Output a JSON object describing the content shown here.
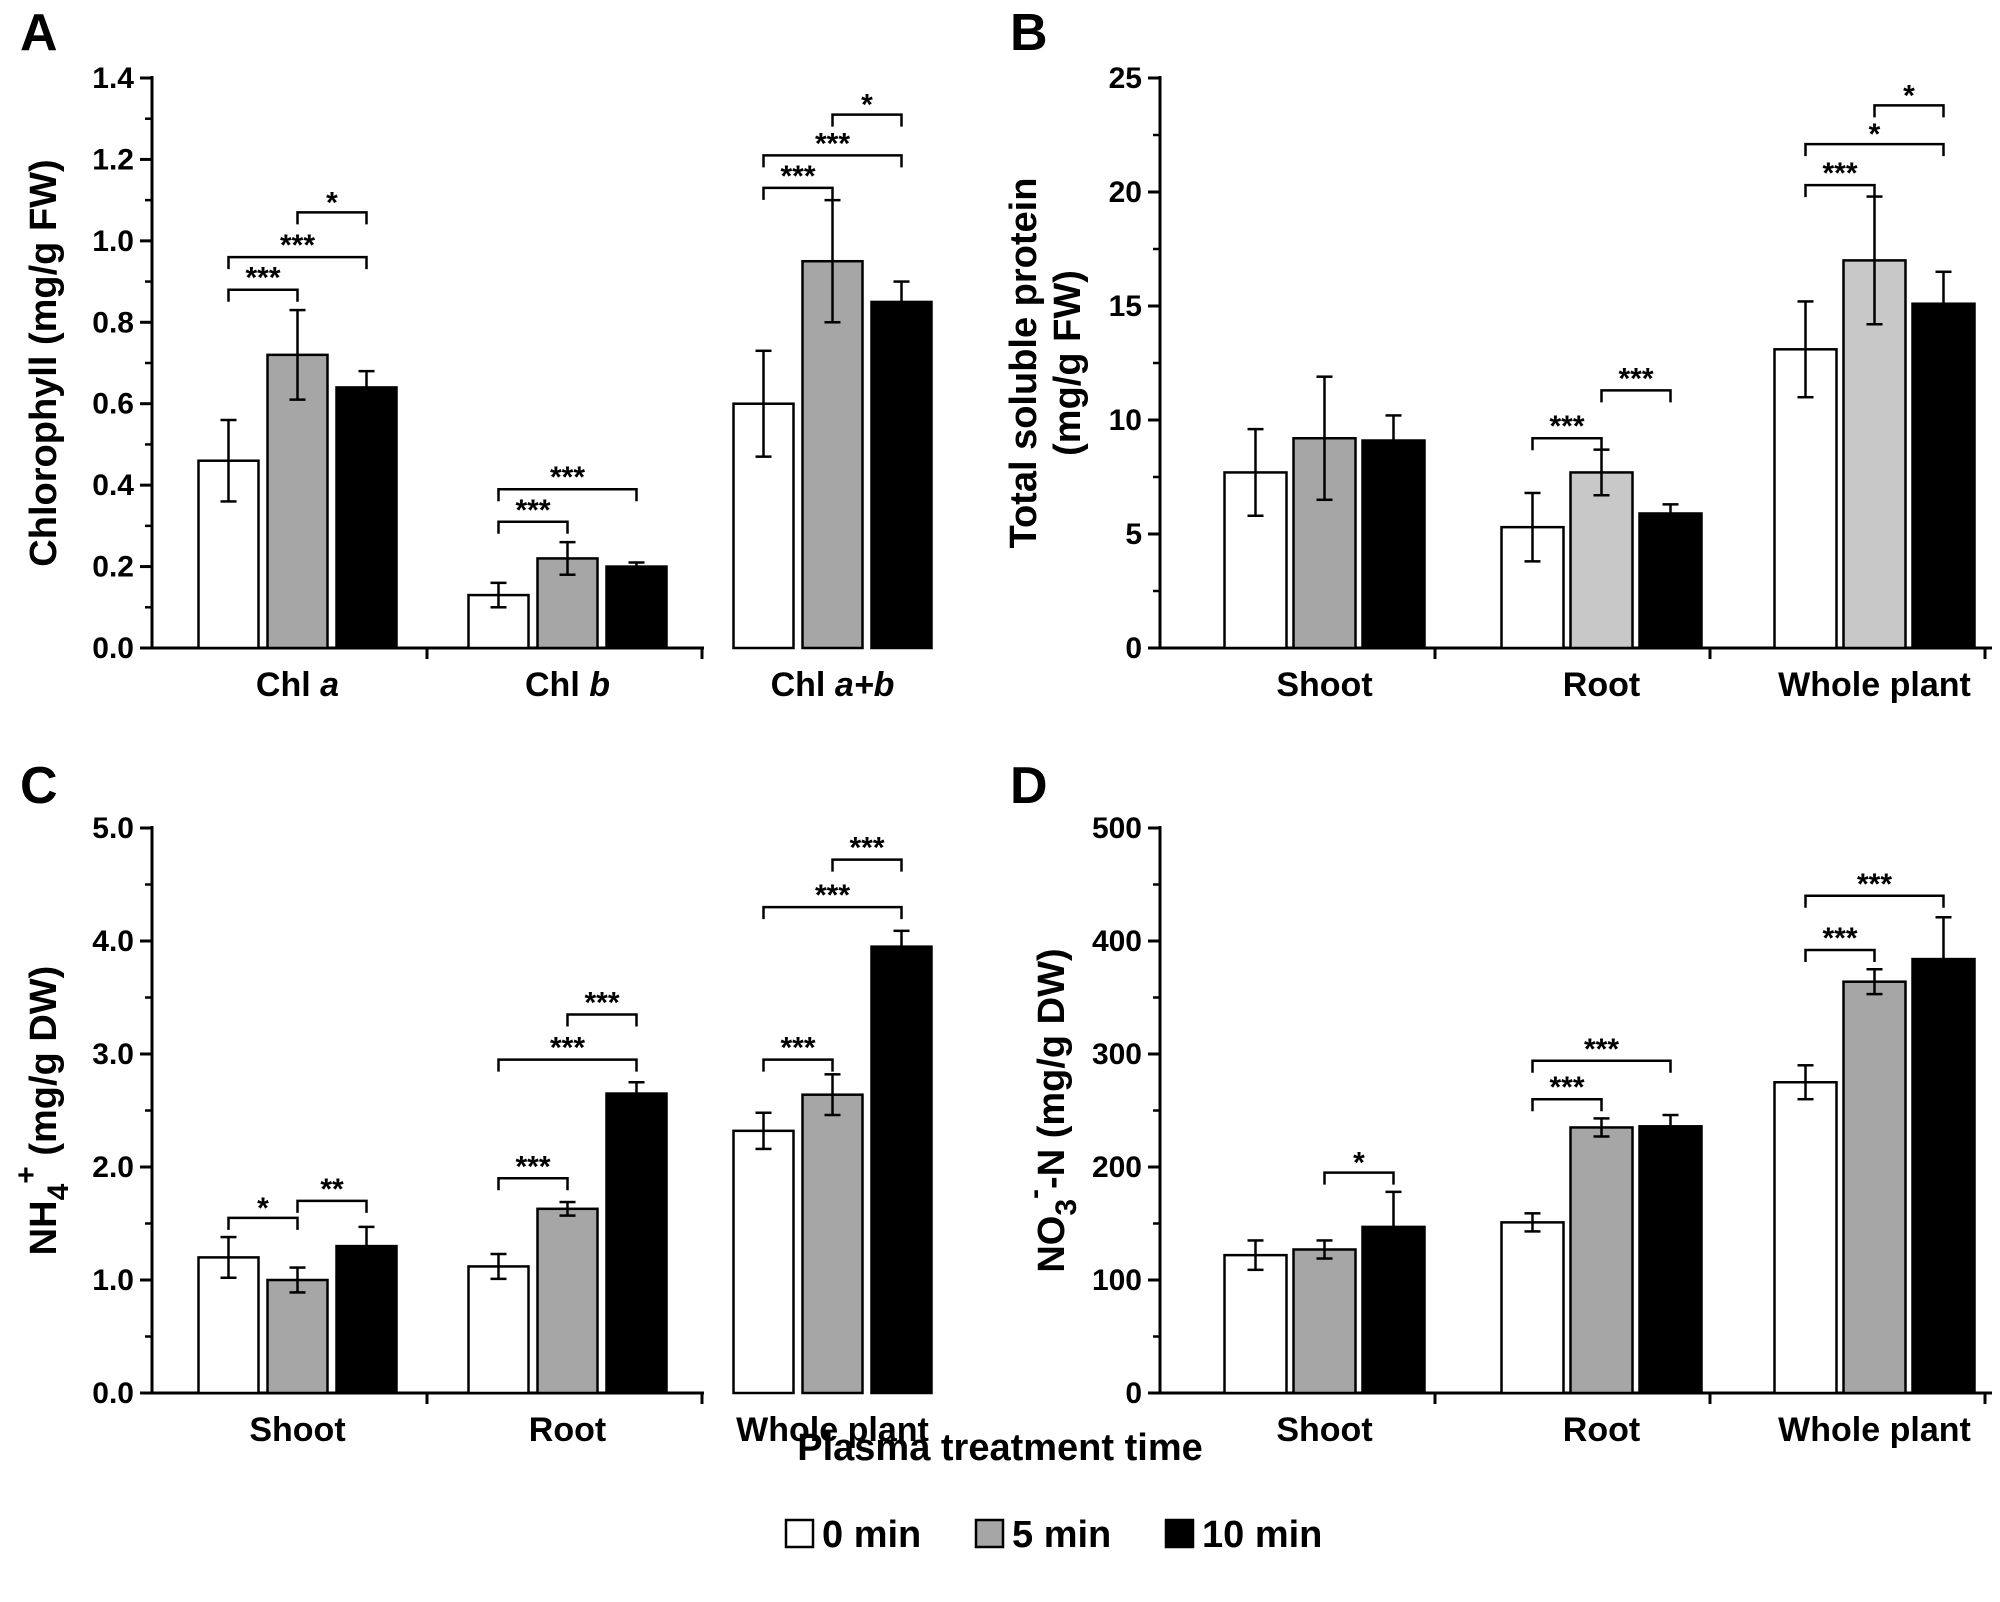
{
  "figure": {
    "legend_title": "Plasma treatment time",
    "legend": [
      {
        "label": "0 min",
        "color": "#ffffff"
      },
      {
        "label": "5 min",
        "color": "#a6a6a6"
      },
      {
        "label": "10 min",
        "color": "#000000"
      }
    ]
  },
  "chart_data": [
    {
      "panel": "A",
      "type": "bar",
      "ylabel": "Chlorophyll (mg/g FW)",
      "ylim": [
        0,
        1.4
      ],
      "yticks": [
        "0.0",
        "0.2",
        "0.4",
        "0.6",
        "0.8",
        "1.0",
        "1.2",
        "1.4"
      ],
      "categories": [
        [
          "Chl ",
          "a"
        ],
        [
          "Chl ",
          "b"
        ],
        [
          "Chl ",
          "a+b"
        ]
      ],
      "series": [
        {
          "name": "0 min",
          "color": "#ffffff",
          "values": [
            0.46,
            0.13,
            0.6
          ],
          "errors": [
            0.1,
            0.03,
            0.13
          ]
        },
        {
          "name": "5 min",
          "color": "#a6a6a6",
          "values": [
            0.72,
            0.22,
            0.95
          ],
          "errors": [
            0.11,
            0.04,
            0.15
          ]
        },
        {
          "name": "10 min",
          "color": "#000000",
          "values": [
            0.64,
            0.2,
            0.85
          ],
          "errors": [
            0.04,
            0.01,
            0.05
          ]
        }
      ],
      "significance": [
        {
          "cat": 0,
          "from": 0,
          "to": 1,
          "label": "***",
          "y": 0.88
        },
        {
          "cat": 0,
          "from": 0,
          "to": 2,
          "label": "***",
          "y": 0.96
        },
        {
          "cat": 0,
          "from": 1,
          "to": 2,
          "label": "*",
          "y": 1.07
        },
        {
          "cat": 1,
          "from": 0,
          "to": 1,
          "label": "***",
          "y": 0.31
        },
        {
          "cat": 1,
          "from": 0,
          "to": 2,
          "label": "***",
          "y": 0.39
        },
        {
          "cat": 2,
          "from": 0,
          "to": 1,
          "label": "***",
          "y": 1.13
        },
        {
          "cat": 2,
          "from": 0,
          "to": 2,
          "label": "***",
          "y": 1.21
        },
        {
          "cat": 2,
          "from": 1,
          "to": 2,
          "label": "*",
          "y": 1.31
        }
      ]
    },
    {
      "panel": "B",
      "type": "bar",
      "ylabel": [
        "Total soluble protein",
        "(mg/g FW)"
      ],
      "ylim": [
        0,
        25
      ],
      "yticks": [
        "0",
        "5",
        "10",
        "15",
        "20",
        "25"
      ],
      "categories": [
        "Shoot",
        "Root",
        "Whole plant"
      ],
      "series": [
        {
          "name": "0 min",
          "color": "#ffffff",
          "values": [
            7.7,
            5.3,
            13.1
          ],
          "errors": [
            1.9,
            1.5,
            2.1
          ]
        },
        {
          "name": "5 min",
          "color": "#a6a6a6",
          "values": [
            9.2,
            7.7,
            17.0
          ],
          "errors": [
            2.7,
            1.0,
            2.8
          ]
        },
        {
          "name": "10 min",
          "color": "#000000",
          "values": [
            9.1,
            5.9,
            15.1
          ],
          "errors": [
            1.1,
            0.4,
            1.4
          ]
        }
      ],
      "bar_colors": [
        [
          "#ffffff",
          "#a6a6a6",
          "#000000"
        ],
        [
          "#ffffff",
          "#c8c8c8",
          "#000000"
        ],
        [
          "#ffffff",
          "#c8c8c8",
          "#000000"
        ]
      ],
      "significance": [
        {
          "cat": 1,
          "from": 0,
          "to": 1,
          "label": "***",
          "y": 9.2
        },
        {
          "cat": 1,
          "from": 1,
          "to": 2,
          "label": "***",
          "y": 11.3
        },
        {
          "cat": 2,
          "from": 0,
          "to": 1,
          "label": "***",
          "y": 20.3
        },
        {
          "cat": 2,
          "from": 0,
          "to": 2,
          "label": "*",
          "y": 22.1
        },
        {
          "cat": 2,
          "from": 1,
          "to": 2,
          "label": "*",
          "y": 23.8
        }
      ]
    },
    {
      "panel": "C",
      "type": "bar",
      "ylabel": [
        "NH",
        "4",
        "+",
        " (mg/g DW)"
      ],
      "ylim": [
        0,
        5
      ],
      "yticks": [
        "0.0",
        "1.0",
        "2.0",
        "3.0",
        "4.0",
        "5.0"
      ],
      "categories": [
        "Shoot",
        "Root",
        "Whole plant"
      ],
      "series": [
        {
          "name": "0 min",
          "color": "#ffffff",
          "values": [
            1.2,
            1.12,
            2.32
          ],
          "errors": [
            0.18,
            0.11,
            0.16
          ]
        },
        {
          "name": "5 min",
          "color": "#a6a6a6",
          "values": [
            1.0,
            1.63,
            2.64
          ],
          "errors": [
            0.11,
            0.06,
            0.18
          ]
        },
        {
          "name": "10 min",
          "color": "#000000",
          "values": [
            1.3,
            2.65,
            3.95
          ],
          "errors": [
            0.17,
            0.1,
            0.14
          ]
        }
      ],
      "significance": [
        {
          "cat": 0,
          "from": 0,
          "to": 1,
          "label": "*",
          "y": 1.55
        },
        {
          "cat": 0,
          "from": 1,
          "to": 2,
          "label": "**",
          "y": 1.7
        },
        {
          "cat": 1,
          "from": 0,
          "to": 1,
          "label": "***",
          "y": 1.9
        },
        {
          "cat": 1,
          "from": 0,
          "to": 2,
          "label": "***",
          "y": 2.95
        },
        {
          "cat": 1,
          "from": 1,
          "to": 2,
          "label": "***",
          "y": 3.35
        },
        {
          "cat": 2,
          "from": 0,
          "to": 1,
          "label": "***",
          "y": 2.95
        },
        {
          "cat": 2,
          "from": 0,
          "to": 2,
          "label": "***",
          "y": 4.3
        },
        {
          "cat": 2,
          "from": 1,
          "to": 2,
          "label": "***",
          "y": 4.72
        }
      ]
    },
    {
      "panel": "D",
      "type": "bar",
      "ylabel": [
        "NO",
        "3",
        "-",
        "-N (mg/g DW)"
      ],
      "ylim": [
        0,
        500
      ],
      "yticks": [
        "0",
        "100",
        "200",
        "300",
        "400",
        "500"
      ],
      "categories": [
        "Shoot",
        "Root",
        "Whole plant"
      ],
      "series": [
        {
          "name": "0 min",
          "color": "#ffffff",
          "values": [
            122,
            151,
            275
          ],
          "errors": [
            13,
            8,
            15
          ]
        },
        {
          "name": "5 min",
          "color": "#a6a6a6",
          "values": [
            127,
            235,
            364
          ],
          "errors": [
            8,
            8,
            11
          ]
        },
        {
          "name": "10 min",
          "color": "#000000",
          "values": [
            147,
            236,
            384
          ],
          "errors": [
            31,
            10,
            37
          ]
        }
      ],
      "significance": [
        {
          "cat": 0,
          "from": 1,
          "to": 2,
          "label": "*",
          "y": 195
        },
        {
          "cat": 1,
          "from": 0,
          "to": 1,
          "label": "***",
          "y": 260
        },
        {
          "cat": 1,
          "from": 0,
          "to": 2,
          "label": "***",
          "y": 294
        },
        {
          "cat": 2,
          "from": 0,
          "to": 1,
          "label": "***",
          "y": 392
        },
        {
          "cat": 2,
          "from": 0,
          "to": 2,
          "label": "***",
          "y": 440
        }
      ]
    }
  ]
}
